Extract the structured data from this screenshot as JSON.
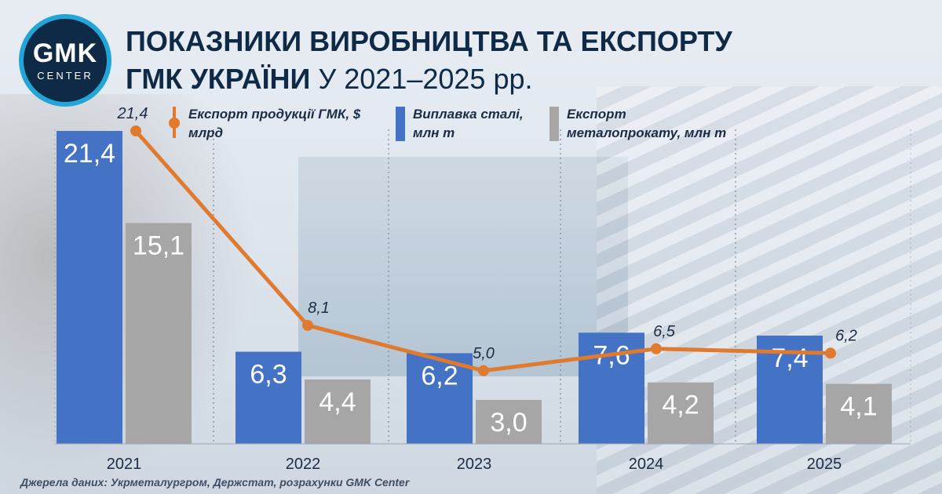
{
  "brand": {
    "logo_main": "GMK",
    "logo_sub": "CENTER"
  },
  "title": {
    "line1": "ПОКАЗНИКИ ВИРОБНИЦТВА ТА ЕКСПОРТУ",
    "line2_bold": "ГМК УКРАЇНИ",
    "line2_rest": " У 2021–2025 рр."
  },
  "source": "Джерела даних: Укрметалургром, Держстат, розрахунки GMK Center",
  "colors": {
    "steel": "#4472c4",
    "rolled": "#a6a6a6",
    "export": "#e07a2e",
    "title": "#0e2a47"
  },
  "chart_data": {
    "type": "bar",
    "title": "ПОКАЗНИКИ ВИРОБНИЦТВА ТА ЕКСПОРТУ ГМК УКРАЇНИ У 2021–2025 рр.",
    "categories": [
      "2021",
      "2022",
      "2023",
      "2024",
      "2025"
    ],
    "ylim": [
      0,
      22
    ],
    "grid": "vertical-dotted",
    "legend_position": "top",
    "series": [
      {
        "name": "Виплавка сталі, млн т",
        "type": "bar",
        "color": "#4472c4",
        "values": [
          21.4,
          6.3,
          6.2,
          7.6,
          7.4
        ],
        "labels": [
          "21,4",
          "6,3",
          "6,2",
          "7,6",
          "7,4"
        ]
      },
      {
        "name": "Експорт металопрокату, млн т",
        "type": "bar",
        "color": "#a6a6a6",
        "values": [
          15.1,
          4.4,
          3.0,
          4.2,
          4.1
        ],
        "labels": [
          "15,1",
          "4,4",
          "3,0",
          "4,2",
          "4,1"
        ]
      },
      {
        "name": "Експорт продукції ГМК, $ млрд",
        "type": "line",
        "color": "#e07a2e",
        "values": [
          21.4,
          8.1,
          5.0,
          6.5,
          6.2
        ],
        "labels": [
          "21,4",
          "8,1",
          "5,0",
          "6,5",
          "6,2"
        ]
      }
    ],
    "legend": [
      {
        "line1": "Експорт продукції ГМК, $",
        "line2": "млрд"
      },
      {
        "line1": "Виплавка сталі,",
        "line2": "млн т"
      },
      {
        "line1": "Експорт",
        "line2": "металопрокату, млн т"
      }
    ]
  }
}
